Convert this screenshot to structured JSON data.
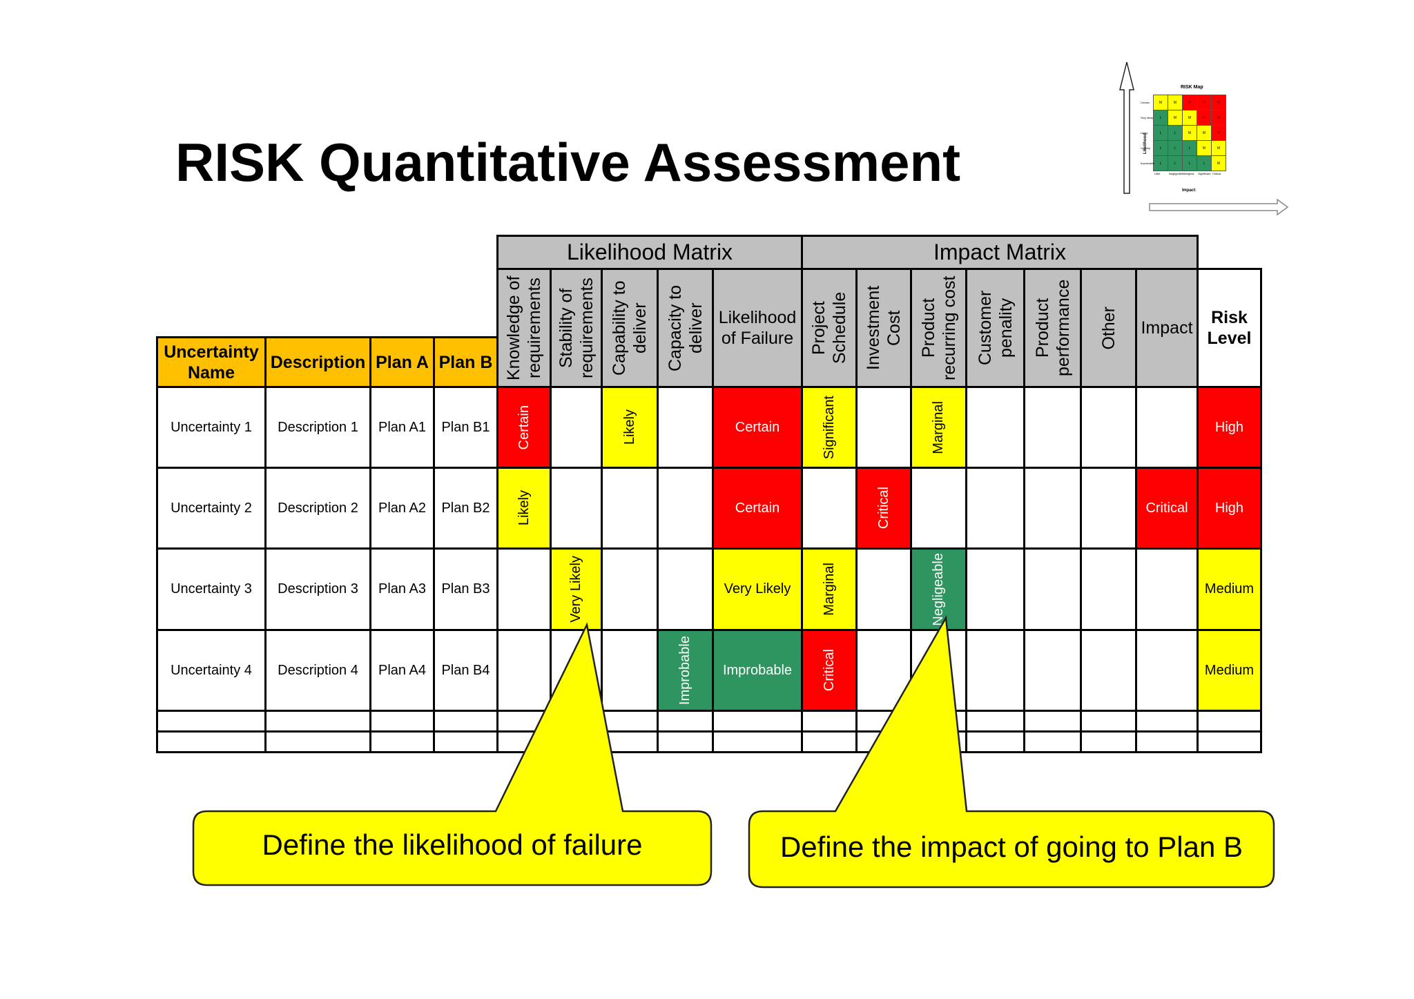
{
  "title": "RISK Quantitative Assessment",
  "colors": {
    "red": "#ff0000",
    "yellow": "#ffff00",
    "green": "#2e9460",
    "header_gray": "#c0c0c0",
    "header_orange": "#ffc000"
  },
  "groups": {
    "likelihood": "Likelihood Matrix",
    "impact": "Impact Matrix"
  },
  "headers": {
    "uncertainty_name": "Uncertainty Name",
    "description": "Description",
    "plan_a": "Plan A",
    "plan_b": "Plan B",
    "knowledge": "Knowledge of requirements",
    "stability": "Stability of requirements",
    "capability": "Capability to deliver",
    "capacity": "Capacity to deliver",
    "likelihood_of_failure": "Likelihood of Failure",
    "project_schedule": "Project Schedule",
    "investment_cost": "Investment Cost",
    "recurring_cost": "Product recurring cost",
    "customer_penalty": "Customer penality",
    "performance": "Product performance",
    "other": "Other",
    "impact": "Impact",
    "risk_level": "Risk Level"
  },
  "rows": [
    {
      "name": "Uncertainty 1",
      "description": "Description 1",
      "plan_a": "Plan A1",
      "plan_b": "Plan B1",
      "knowledge": "Certain",
      "stability": "",
      "capability": "Likely",
      "capacity": "",
      "likelihood": "Certain",
      "schedule": "Significant",
      "investment": "",
      "recurring": "Marginal",
      "penalty": "",
      "performance": "",
      "other": "",
      "impact": "",
      "risk": "High"
    },
    {
      "name": "Uncertainty 2",
      "description": "Description 2",
      "plan_a": "Plan A2",
      "plan_b": "Plan B2",
      "knowledge": "Likely",
      "stability": "",
      "capability": "",
      "capacity": "",
      "likelihood": "Certain",
      "schedule": "",
      "investment": "Critical",
      "recurring": "",
      "penalty": "",
      "performance": "",
      "other": "",
      "impact": "Critical",
      "risk": "High"
    },
    {
      "name": "Uncertainty 3",
      "description": "Description 3",
      "plan_a": "Plan A3",
      "plan_b": "Plan B3",
      "knowledge": "",
      "stability": "Very Likely",
      "capability": "",
      "capacity": "",
      "likelihood": "Very Likely",
      "schedule": "Marginal",
      "investment": "",
      "recurring": "Negligeable",
      "penalty": "",
      "performance": "",
      "other": "",
      "impact": "",
      "risk": "Medium"
    },
    {
      "name": "Uncertainty 4",
      "description": "Description 4",
      "plan_a": "Plan A4",
      "plan_b": "Plan B4",
      "knowledge": "",
      "stability": "",
      "capability": "",
      "capacity": "Improbable",
      "likelihood": "Improbable",
      "schedule": "Critical",
      "investment": "",
      "recurring": "",
      "penalty": "",
      "performance": "",
      "other": "",
      "impact": "",
      "risk": "Medium"
    }
  ],
  "callouts": {
    "likelihood": "Define the likelihood of failure",
    "impact": "Define the impact of going to  Plan B"
  },
  "risk_map": {
    "title": "RISK Map",
    "y_label": "Likelihood",
    "x_label": "Impact",
    "likelihood_levels": [
      "Certain",
      "Very likely",
      "Likely",
      "Unlikely",
      "Improbable"
    ],
    "impact_levels": [
      "Little",
      "Negligeable",
      "Marginal",
      "Significant",
      "Critical"
    ],
    "cells": [
      [
        "M",
        "M",
        "H",
        "H",
        "H"
      ],
      [
        "L",
        "M",
        "M",
        "H",
        "H"
      ],
      [
        "L",
        "L",
        "M",
        "M",
        "H"
      ],
      [
        "L",
        "L",
        "L",
        "M",
        "M"
      ],
      [
        "L",
        "L",
        "L",
        "L",
        "M"
      ]
    ],
    "cell_colors": [
      [
        "yellow",
        "yellow",
        "red",
        "red",
        "red"
      ],
      [
        "green",
        "yellow",
        "yellow",
        "red",
        "red"
      ],
      [
        "green",
        "green",
        "yellow",
        "yellow",
        "red"
      ],
      [
        "green",
        "green",
        "green",
        "yellow",
        "yellow"
      ],
      [
        "green",
        "green",
        "green",
        "green",
        "yellow"
      ]
    ]
  }
}
